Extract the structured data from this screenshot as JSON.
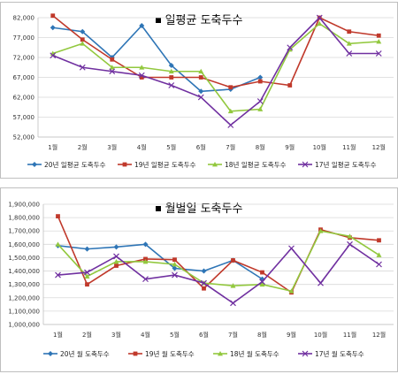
{
  "charts": [
    {
      "type": "line",
      "title": "일평균 도축두수",
      "categories": [
        "1월",
        "2월",
        "3월",
        "4월",
        "5월",
        "6월",
        "7월",
        "8월",
        "9월",
        "10월",
        "11월",
        "12월"
      ],
      "ylim": [
        52000,
        82000
      ],
      "yticks": [
        52000,
        57000,
        62000,
        67000,
        72000,
        77000,
        82000
      ],
      "ytick_labels": [
        "52,000",
        "57,000",
        "62,000",
        "67,000",
        "72,000",
        "77,000",
        "82,000"
      ],
      "grid": true,
      "legend": "bottom",
      "series": [
        {
          "name": "20년 일평균 도축두수",
          "color": "#2E75B6",
          "marker": "diamond",
          "values": [
            79500,
            78500,
            72000,
            80000,
            70000,
            63500,
            64000,
            67000,
            null,
            null,
            null,
            null
          ]
        },
        {
          "name": "19년 일평균 도축두수",
          "color": "#C0392B",
          "marker": "square",
          "values": [
            82500,
            76500,
            71500,
            67000,
            67000,
            67000,
            64500,
            66000,
            65000,
            82000,
            78500,
            77500
          ]
        },
        {
          "name": "18년 일평균 도축두수",
          "color": "#92C83E",
          "marker": "triangle",
          "values": [
            73000,
            75500,
            69500,
            69500,
            68500,
            68500,
            58500,
            59000,
            74000,
            80500,
            75500,
            76000
          ]
        },
        {
          "name": "17년 일평균 도축두수",
          "color": "#7030A0",
          "marker": "x",
          "values": [
            72500,
            69500,
            68500,
            67500,
            65000,
            62000,
            55000,
            61000,
            74500,
            82000,
            73000,
            73000
          ]
        }
      ]
    },
    {
      "type": "line",
      "title": "월별일 도축두수",
      "categories": [
        "1월",
        "2월",
        "3월",
        "4월",
        "5월",
        "6월",
        "7월",
        "8월",
        "9월",
        "10월",
        "11월",
        "12월"
      ],
      "ylim": [
        1000000,
        1900000
      ],
      "yticks": [
        1000000,
        1100000,
        1200000,
        1300000,
        1400000,
        1500000,
        1600000,
        1700000,
        1800000,
        1900000
      ],
      "ytick_labels": [
        "1,000,000",
        "1,100,000",
        "1,200,000",
        "1,300,000",
        "1,400,000",
        "1,500,000",
        "1,600,000",
        "1,700,000",
        "1,800,000",
        "1,900,000"
      ],
      "grid": true,
      "legend": "bottom",
      "series": [
        {
          "name": "20년 월 도축두수",
          "color": "#2E75B6",
          "marker": "diamond",
          "values": [
            1590000,
            1565000,
            1580000,
            1600000,
            1420000,
            1400000,
            1480000,
            1340000,
            null,
            null,
            null,
            null
          ]
        },
        {
          "name": "19년 월 도축두수",
          "color": "#C0392B",
          "marker": "square",
          "values": [
            1810000,
            1300000,
            1440000,
            1490000,
            1485000,
            1270000,
            1480000,
            1390000,
            1240000,
            1710000,
            1650000,
            1630000
          ]
        },
        {
          "name": "18년 월 도축두수",
          "color": "#92C83E",
          "marker": "triangle",
          "values": [
            1600000,
            1360000,
            1470000,
            1470000,
            1450000,
            1310000,
            1290000,
            1300000,
            1250000,
            1700000,
            1660000,
            1520000
          ]
        },
        {
          "name": "17년 월 도축두수",
          "color": "#7030A0",
          "marker": "x",
          "values": [
            1370000,
            1390000,
            1510000,
            1340000,
            1370000,
            1310000,
            1160000,
            1320000,
            1570000,
            1310000,
            1600000,
            1450000
          ]
        }
      ]
    }
  ]
}
